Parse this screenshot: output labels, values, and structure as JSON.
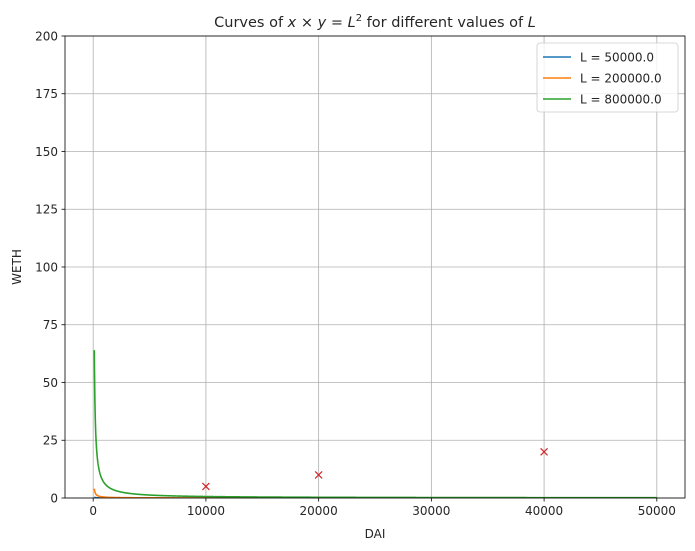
{
  "chart_data": {
    "type": "line",
    "title": "Curves of x × y = L² for different values of L",
    "title_parts": {
      "prefix": "Curves of ",
      "x": "x",
      "times": " × ",
      "y": "y",
      "eq": " = ",
      "L": "L",
      "sup": "2",
      "middle": " for different values of ",
      "L2": "L"
    },
    "xlabel": "DAI",
    "ylabel": "WETH",
    "xlim": [
      -2500,
      52500
    ],
    "ylim": [
      0,
      200
    ],
    "xticks": [
      0,
      10000,
      20000,
      30000,
      40000,
      50000
    ],
    "yticks": [
      0,
      25,
      50,
      75,
      100,
      125,
      150,
      175,
      200
    ],
    "grid": true,
    "legend_position": "top-right",
    "series": [
      {
        "name": "L = 50000.0",
        "L": 50000.0,
        "color": "#1f77b4",
        "x_range": [
          100,
          50000
        ]
      },
      {
        "name": "L = 200000.0",
        "L": 200000.0,
        "color": "#ff7f0e",
        "x_range": [
          100,
          50000
        ]
      },
      {
        "name": "L = 800000.0",
        "L": 800000.0,
        "color": "#2ca02c",
        "x_range": [
          100,
          50000
        ]
      }
    ],
    "markers": {
      "symbol": "x",
      "color": "#d62728",
      "points": [
        {
          "x": 10000,
          "y": 5
        },
        {
          "x": 20000,
          "y": 10
        },
        {
          "x": 40000,
          "y": 20
        }
      ]
    }
  }
}
